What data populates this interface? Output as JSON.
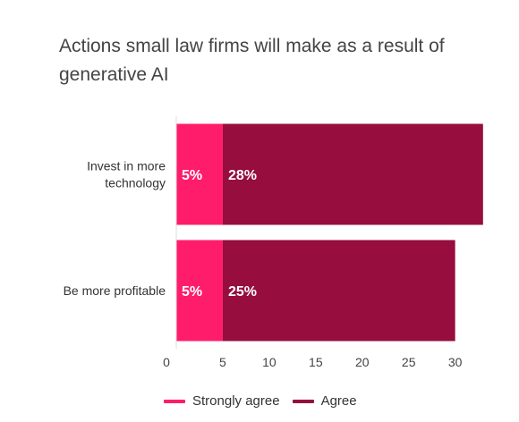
{
  "chart_data": {
    "type": "bar",
    "orientation": "horizontal",
    "stacked": true,
    "title": "Actions small law firms will make as a result of generative AI",
    "categories": [
      "Invest in more technology",
      "Be more profitable"
    ],
    "series": [
      {
        "name": "Strongly agree",
        "values": [
          5,
          5
        ],
        "labels": [
          "5%",
          "5%"
        ],
        "color": "#ff1c6b"
      },
      {
        "name": "Agree",
        "values": [
          28,
          25
        ],
        "labels": [
          "28%",
          "25%"
        ],
        "color": "#960d3e"
      }
    ],
    "x_ticks": [
      0,
      5,
      10,
      15,
      20,
      25,
      30
    ],
    "xlim": [
      0,
      33.5
    ],
    "grid": false,
    "legend_position": "bottom"
  }
}
